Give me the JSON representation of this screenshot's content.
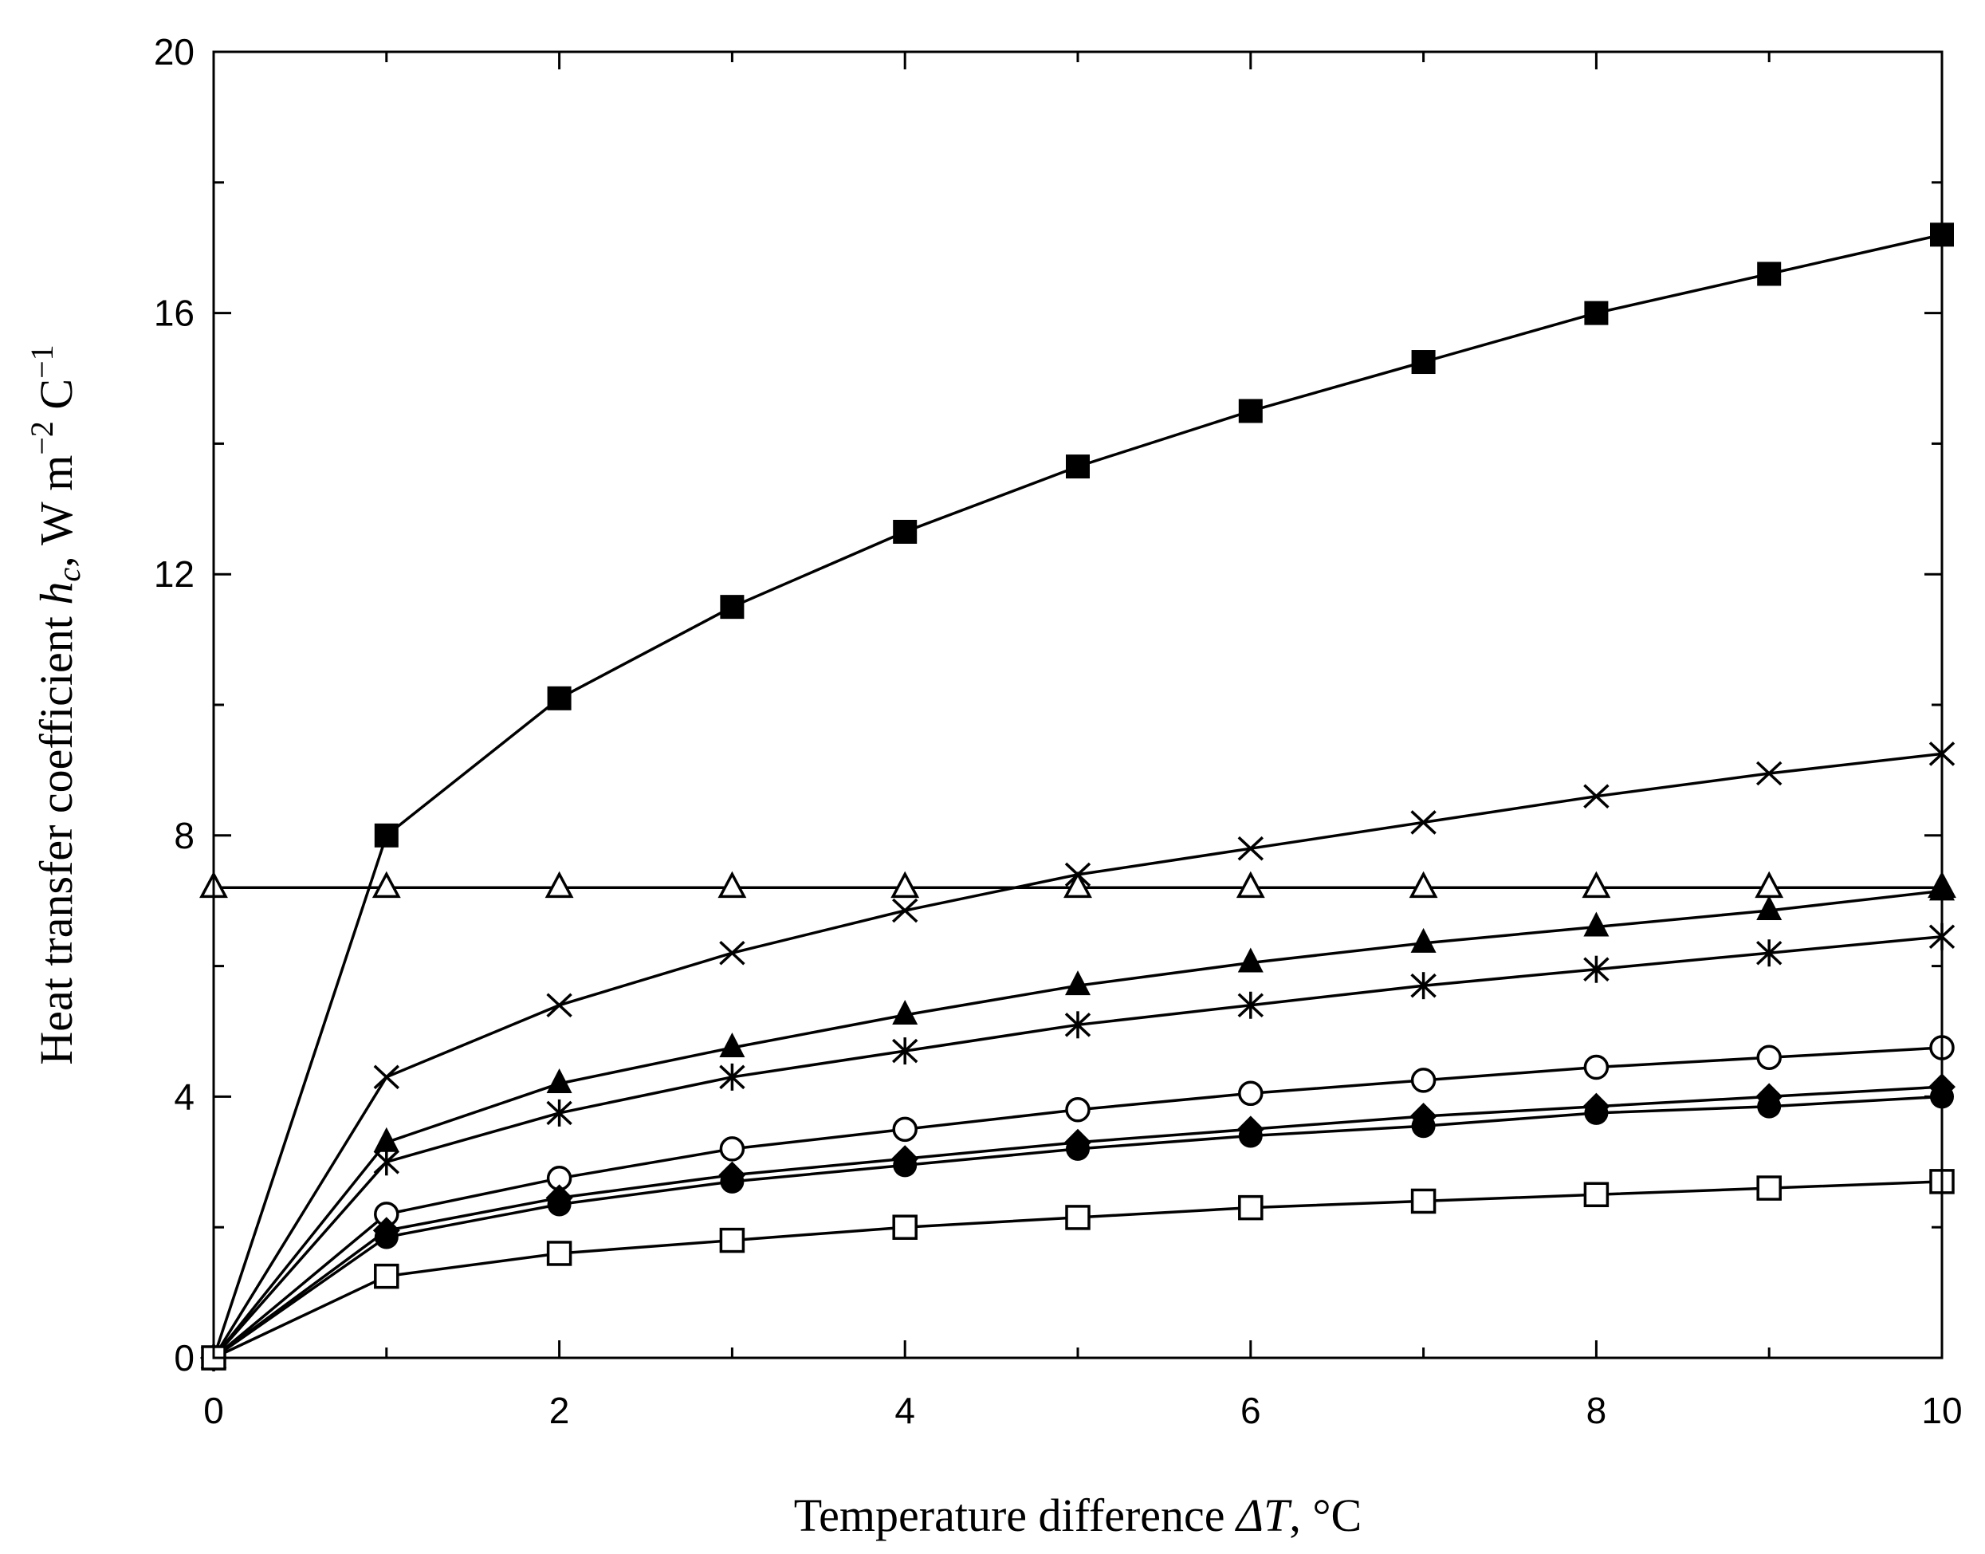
{
  "chart_data": {
    "type": "line",
    "title": "",
    "xlabel": {
      "prefix": "Temperature difference ",
      "symbol": "ΔT",
      "suffix": ", °C"
    },
    "ylabel": {
      "prefix": "Heat transfer coefficient ",
      "symbol_base": "h",
      "symbol_sub": "c",
      "unit_text": ", W m",
      "unit_exp1": "−2",
      "unit_mid": " C",
      "unit_exp2": "−1"
    },
    "xlim": [
      0,
      10
    ],
    "ylim": [
      0,
      20
    ],
    "xticks": [
      0,
      2,
      4,
      6,
      8,
      10
    ],
    "yticks": [
      0,
      4,
      8,
      12,
      16,
      20
    ],
    "grid": false,
    "x": [
      0,
      1,
      2,
      3,
      4,
      5,
      6,
      7,
      8,
      9,
      10
    ],
    "series": [
      {
        "name": "filled-square",
        "marker": "square-filled",
        "values": [
          0,
          8.0,
          10.1,
          11.5,
          12.65,
          13.65,
          14.5,
          15.25,
          16.0,
          16.6,
          17.2
        ]
      },
      {
        "name": "cross",
        "marker": "x",
        "values": [
          0,
          4.3,
          5.4,
          6.2,
          6.85,
          7.4,
          7.8,
          8.2,
          8.6,
          8.95,
          9.25
        ]
      },
      {
        "name": "open-triangle",
        "marker": "triangle-open",
        "values": [
          7.2,
          7.2,
          7.2,
          7.2,
          7.2,
          7.2,
          7.2,
          7.2,
          7.2,
          7.2,
          7.2
        ]
      },
      {
        "name": "filled-triangle",
        "marker": "triangle-filled",
        "values": [
          0,
          3.3,
          4.2,
          4.75,
          5.25,
          5.7,
          6.05,
          6.35,
          6.6,
          6.85,
          7.15
        ]
      },
      {
        "name": "asterisk",
        "marker": "asterisk",
        "values": [
          0,
          3.0,
          3.75,
          4.3,
          4.7,
          5.1,
          5.4,
          5.7,
          5.95,
          6.2,
          6.45
        ]
      },
      {
        "name": "open-circle",
        "marker": "circle-open",
        "values": [
          0,
          2.2,
          2.75,
          3.2,
          3.5,
          3.8,
          4.05,
          4.25,
          4.45,
          4.6,
          4.75
        ]
      },
      {
        "name": "filled-diamond",
        "marker": "diamond-filled",
        "values": [
          0,
          1.95,
          2.45,
          2.8,
          3.05,
          3.3,
          3.5,
          3.7,
          3.85,
          4.0,
          4.15
        ]
      },
      {
        "name": "filled-circle",
        "marker": "circle-filled",
        "values": [
          0,
          1.85,
          2.35,
          2.7,
          2.95,
          3.2,
          3.4,
          3.55,
          3.75,
          3.85,
          4.0
        ]
      },
      {
        "name": "open-square",
        "marker": "square-open",
        "values": [
          0,
          1.25,
          1.6,
          1.8,
          2.0,
          2.15,
          2.3,
          2.4,
          2.5,
          2.6,
          2.7
        ]
      }
    ]
  }
}
